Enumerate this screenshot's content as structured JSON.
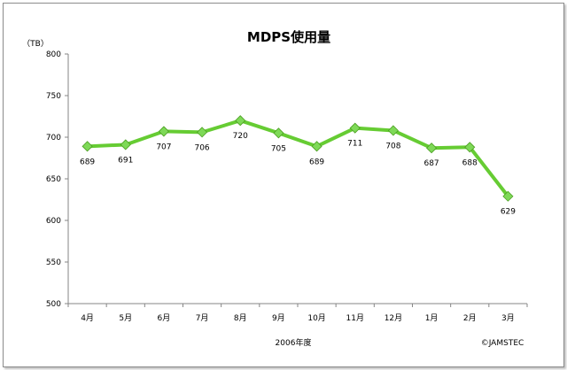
{
  "chart_data": {
    "type": "line",
    "title": "MDPS使用量",
    "ylabel": "（TB）",
    "xlabel": "2006年度",
    "credit": "©JAMSTEC",
    "categories": [
      "4月",
      "5月",
      "6月",
      "7月",
      "8月",
      "9月",
      "10月",
      "11月",
      "12月",
      "1月",
      "2月",
      "3月"
    ],
    "series": [
      {
        "values": [
          689,
          691,
          707,
          706,
          720,
          705,
          689,
          711,
          708,
          687,
          688,
          629
        ]
      }
    ],
    "ylim": [
      500,
      800
    ],
    "yticks": [
      500,
      550,
      600,
      650,
      700,
      750,
      800
    ],
    "grid": false,
    "legend": "none",
    "line_color": "#66cc33",
    "marker_color": "#7ed957",
    "axis_color": "#868686"
  }
}
